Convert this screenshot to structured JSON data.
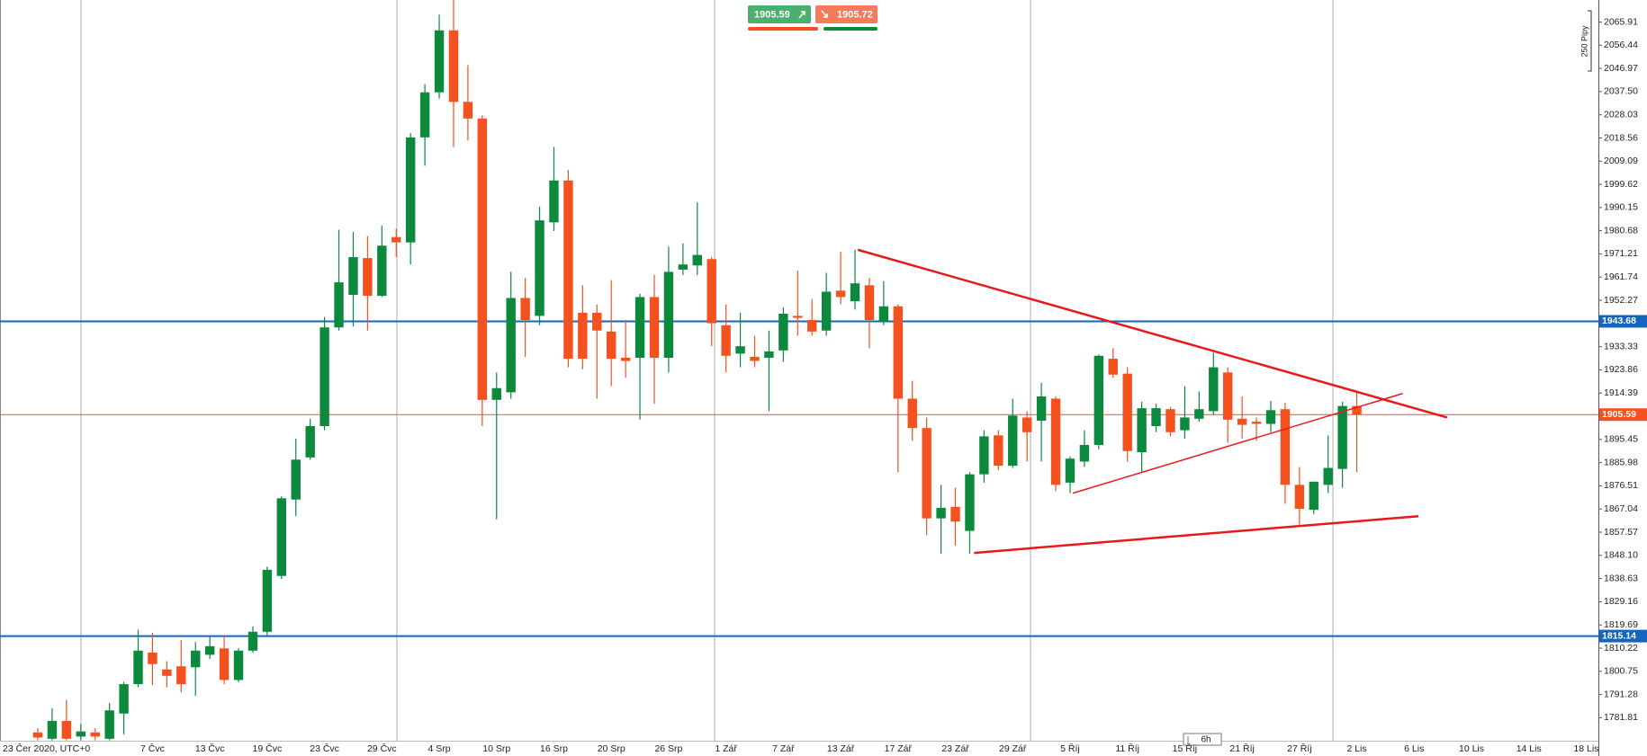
{
  "chart_data": {
    "type": "candlestick",
    "up_color": "#0b8a3e",
    "down_color": "#f4511e",
    "categories": [
      "23 Čer 2020, UTC+0",
      null,
      null,
      null,
      null,
      null,
      null,
      null,
      "7 Čvc",
      null,
      null,
      null,
      "13 Čvc",
      null,
      null,
      null,
      "19 Čvc",
      null,
      null,
      null,
      "23 Čvc",
      null,
      null,
      null,
      "29 Čvc",
      null,
      null,
      null,
      "4 Srp",
      null,
      null,
      null,
      "10 Srp",
      null,
      null,
      null,
      "16 Srp",
      null,
      null,
      null,
      "20 Srp",
      null,
      null,
      null,
      "26 Srp",
      null,
      null,
      null,
      "1 Zář",
      null,
      null,
      null,
      "7 Zář",
      null,
      null,
      null,
      "13 Zář",
      null,
      null,
      null,
      "17 Zář",
      null,
      null,
      null,
      "23 Zář",
      null,
      null,
      null,
      "29 Zář",
      null,
      null,
      null,
      "5 Říj",
      null,
      null,
      null,
      "11 Říj",
      null,
      null,
      null,
      "15 Říj",
      null,
      null,
      null,
      "21 Říj",
      null,
      null,
      null,
      "27 Říj",
      null,
      null,
      null,
      "2 Lis",
      null,
      null,
      null,
      "6 Lis",
      null,
      null,
      null,
      "10 Lis",
      null,
      null,
      null,
      "14 Lis",
      null,
      null,
      null,
      "18 Lis"
    ],
    "open": [
      1775.8,
      1773.2,
      1780.5,
      1774.1,
      1775.8,
      1773.2,
      1783.5,
      1795.5,
      1808.4,
      1801.5,
      1802.8,
      1802.4,
      1807.5,
      1810.1,
      1797.2,
      1809.2,
      1816.9,
      1839.7,
      1870.9,
      1888.1,
      1900.9,
      1941.2,
      1954.5,
      1969.5,
      1954.1,
      1978.1,
      1975.9,
      2018.8,
      2037.2,
      2062.5,
      2033.3,
      2026.5,
      1911.6,
      1914.7,
      1953.2,
      1945.9,
      1984.1,
      2001.2,
      1947.2,
      1947.2,
      1939.5,
      1928.8,
      1928.8,
      1953.6,
      1928.8,
      1964.8,
      1966.5,
      1969.1,
      1942.1,
      1930.5,
      1929.2,
      1928.8,
      1931.8,
      1945.9,
      1944.2,
      1939.9,
      1956.2,
      1951.9,
      1958.4,
      1943.8,
      1949.8,
      1912.1,
      1900.1,
      1863.2,
      1867.9,
      1858.1,
      1881.2,
      1897.1,
      1884.7,
      1904.4,
      1903.1,
      1912.1,
      1877.8,
      1886.4,
      1893.2,
      1928.4,
      1922.3,
      1890.2,
      1900.9,
      1907.8,
      1899.2,
      1903.9,
      1907.0,
      1922.8,
      1903.9,
      1902.7,
      1901.8,
      1907.8,
      1876.9,
      1866.7,
      1876.9,
      1883.4,
      1909.1,
      null,
      null,
      null,
      null,
      null,
      null,
      null,
      null,
      null,
      null,
      null,
      null,
      null,
      null,
      null,
      null
    ],
    "high": [
      1777.5,
      1785.7,
      1789.1,
      1779.2,
      1777.5,
      1787.8,
      1796.4,
      1817.8,
      1816.5,
      1804.9,
      1813.5,
      1812.7,
      1815.2,
      1815.2,
      1810.1,
      1819.1,
      1843.5,
      1872.2,
      1895.8,
      1903.9,
      1945.5,
      1981.1,
      1980.2,
      1978.5,
      1982.8,
      1981.5,
      2020.5,
      2040.6,
      2068.9,
      2074.9,
      2048.3,
      2027.8,
      1922.8,
      1963.9,
      1961.4,
      1990.5,
      2014.9,
      2005.5,
      1958.4,
      1950.6,
      1960.5,
      1944.2,
      1954.9,
      1962.6,
      1974.2,
      1975.5,
      1992.2,
      1969.9,
      1950.6,
      1947.2,
      1937.8,
      1939.9,
      1949.4,
      1964.4,
      1952.8,
      1963.5,
      1972.1,
      1972.9,
      1961.4,
      1960.1,
      1950.6,
      1919.4,
      1904.4,
      1876.9,
      1875.7,
      1882.1,
      1899.2,
      1899.2,
      1912.1,
      1907.0,
      1918.5,
      1913.0,
      1888.5,
      1899.2,
      1930.1,
      1932.7,
      1924.9,
      1910.8,
      1910.0,
      1908.7,
      1917.2,
      1915.1,
      1930.9,
      1924.9,
      1913.0,
      1904.4,
      1911.2,
      1910.4,
      1884.2,
      1878.2,
      1897.1,
      1910.8,
      1915.5,
      null,
      null,
      null,
      null,
      null,
      null,
      null,
      null,
      null,
      null,
      null,
      null,
      null,
      null,
      null,
      null
    ],
    "low": [
      1772.6,
      1772.6,
      1772.6,
      1772.6,
      1772.6,
      1772.6,
      1775.0,
      1794.2,
      1795.1,
      1794.2,
      1792.1,
      1790.8,
      1805.8,
      1795.5,
      1796.4,
      1808.4,
      1815.2,
      1838.4,
      1864.1,
      1887.2,
      1899.2,
      1939.9,
      1941.6,
      1939.9,
      1953.6,
      1969.9,
      1966.9,
      2007.2,
      2034.6,
      2014.9,
      2017.5,
      1900.9,
      1862.8,
      1912.1,
      1929.2,
      1942.1,
      1980.6,
      1924.9,
      1924.1,
      1912.1,
      1917.2,
      1920.6,
      1903.5,
      1910.0,
      1922.8,
      1962.6,
      1962.6,
      1933.5,
      1922.8,
      1924.9,
      1924.9,
      1907.0,
      1927.1,
      1937.8,
      1937.8,
      1937.8,
      1950.6,
      1948.5,
      1932.7,
      1942.1,
      1882.1,
      1894.9,
      1856.4,
      1848.7,
      1852.1,
      1848.7,
      1877.8,
      1882.9,
      1883.8,
      1886.4,
      1886.4,
      1874.4,
      1873.5,
      1884.2,
      1891.5,
      1920.6,
      1886.4,
      1882.1,
      1898.4,
      1896.7,
      1895.8,
      1902.7,
      1905.6,
      1894.1,
      1895.8,
      1894.9,
      1898.4,
      1869.2,
      1860.7,
      1865.0,
      1873.5,
      1875.7,
      1882.1,
      null,
      null,
      null,
      null,
      null,
      null,
      null,
      null,
      null,
      null,
      null,
      null,
      null,
      null,
      null,
      null
    ],
    "close": [
      1773.7,
      1780.5,
      1773.2,
      1776.2,
      1774.1,
      1784.8,
      1795.5,
      1809.2,
      1803.7,
      1798.9,
      1795.5,
      1809.2,
      1811.0,
      1797.2,
      1809.2,
      1816.9,
      1842.2,
      1871.4,
      1887.2,
      1900.9,
      1941.2,
      1959.6,
      1969.9,
      1954.1,
      1974.6,
      1975.9,
      2018.8,
      2037.2,
      2062.5,
      2033.3,
      2026.5,
      1911.6,
      1916.4,
      1953.2,
      1944.2,
      1984.9,
      2001.2,
      1928.4,
      1928.4,
      1939.9,
      1928.4,
      1927.5,
      1953.6,
      1928.8,
      1963.9,
      1966.9,
      1970.8,
      1942.9,
      1929.6,
      1933.5,
      1927.5,
      1931.4,
      1946.8,
      1945.1,
      1939.5,
      1955.8,
      1953.6,
      1959.2,
      1944.2,
      1949.8,
      1912.1,
      1900.1,
      1863.2,
      1867.5,
      1861.9,
      1881.2,
      1896.7,
      1884.7,
      1905.2,
      1898.4,
      1913.0,
      1876.9,
      1887.6,
      1893.2,
      1929.6,
      1921.9,
      1890.7,
      1908.2,
      1908.2,
      1898.4,
      1904.4,
      1907.8,
      1924.9,
      1903.5,
      1901.4,
      1901.8,
      1907.4,
      1876.9,
      1867.1,
      1878.2,
      1883.8,
      1909.1,
      1905.59,
      null,
      null,
      null,
      null,
      null,
      null,
      null,
      null,
      null,
      null,
      null,
      null,
      null,
      null,
      null,
      null
    ],
    "ylim": [
      1772.4,
      2074.91
    ],
    "yticks": [
      2065.91,
      2056.44,
      2046.97,
      {
        "value": 2037.5,
        "label": "2037.50"
      },
      2028.03,
      2018.56,
      2009.09,
      1999.62,
      1990.15,
      1980.68,
      1971.21,
      1961.74,
      1952.27,
      1933.33,
      1923.86,
      1914.39,
      1895.45,
      1885.98,
      1876.51,
      1867.04,
      1857.57,
      {
        "value": 1848.1,
        "label": "1848.10"
      },
      1838.63,
      1829.16,
      1819.69,
      1810.22,
      1800.75,
      1791.28,
      1781.81
    ],
    "levels": [
      {
        "value": 1943.68,
        "color": "#1565c0"
      },
      {
        "value": 1815.14,
        "color": "#1565c0"
      }
    ],
    "last_price": {
      "value": 1905.59,
      "color": "#f4511e"
    },
    "trendlines": [
      {
        "x": [
          57.2,
          98.3
        ],
        "y": [
          1972.9,
          1904.4
        ],
        "color": "#e8191a",
        "width": 2.5
      },
      {
        "x": [
          65.3,
          96.3
        ],
        "y": [
          1849.1,
          1864.1
        ],
        "color": "#e8191a",
        "width": 2.5
      },
      {
        "x": [
          72.2,
          95.2
        ],
        "y": [
          1873.5,
          1914.2
        ],
        "color": "#e8191a",
        "width": 1.5
      }
    ],
    "quote": {
      "sell": 1905.59,
      "buy": 1905.72
    },
    "scale_label": "250 Pipy",
    "timeframe": "6h"
  }
}
